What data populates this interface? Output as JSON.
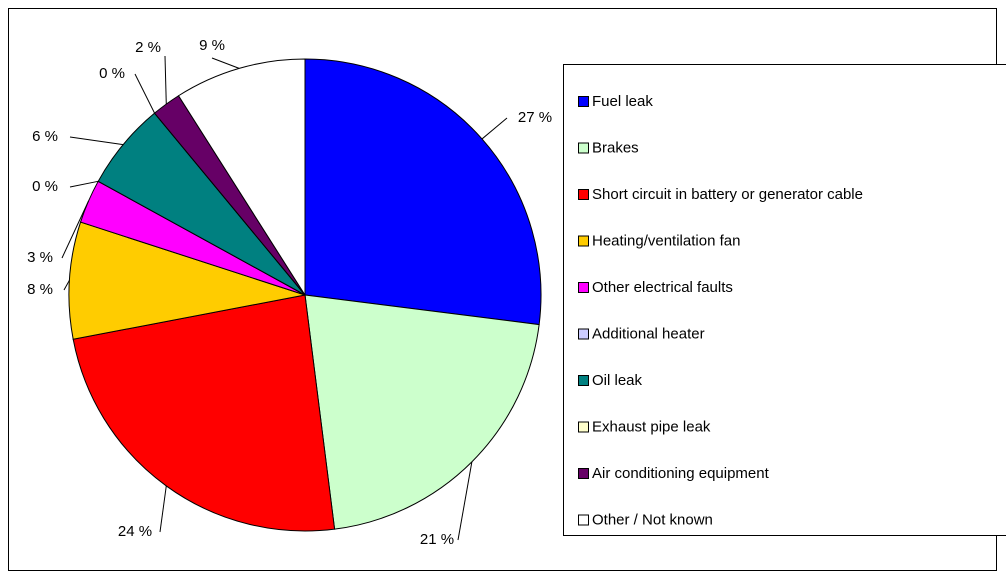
{
  "chart_data": {
    "type": "pie",
    "categories": [
      "Fuel leak",
      "Brakes",
      "Short circuit in battery or generator cable",
      "Heating/ventilation fan",
      "Other electrical faults",
      "Additional heater",
      "Oil leak",
      "Exhaust pipe leak",
      "Air conditioning equipment",
      "Other / Not known"
    ],
    "values": [
      27,
      21,
      24,
      8,
      3,
      0,
      6,
      0,
      2,
      9
    ],
    "value_labels": [
      "27 %",
      "21 %",
      "24 %",
      "8 %",
      "3 %",
      "0 %",
      "6 %",
      "0 %",
      "2 %",
      "9 %"
    ],
    "colors": [
      "#0000ff",
      "#ccffcc",
      "#ff0000",
      "#ffcc00",
      "#ff00ff",
      "#ccccff",
      "#008080",
      "#ffffcc",
      "#660066",
      "#ffffff"
    ],
    "legend": "right"
  }
}
